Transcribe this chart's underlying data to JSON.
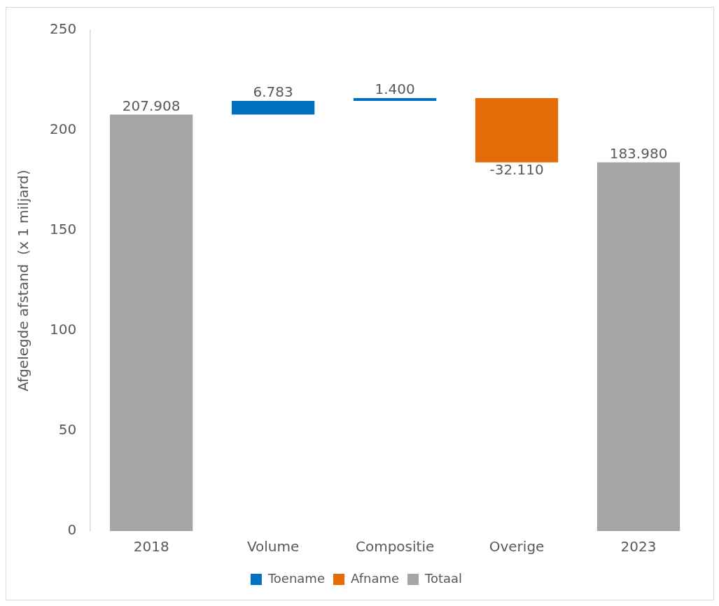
{
  "chart_data": {
    "type": "bar",
    "categories": [
      "2018",
      "Volume",
      "Compositie",
      "Overige",
      "2023"
    ],
    "ylabel": "Afgelegde afstand  (x 1 miljard)",
    "ylim": [
      0,
      250
    ],
    "yticks": [
      0,
      50,
      100,
      150,
      200,
      250
    ],
    "grid": false,
    "legend": "bottom",
    "series": [
      {
        "name": "Toename",
        "color": "#0070c0",
        "values": [
          null,
          6.783,
          1.4,
          null,
          null
        ],
        "base": [
          null,
          207.908,
          214.691,
          null,
          null
        ],
        "value_labels": [
          null,
          "6.783",
          "1.400",
          null,
          null
        ]
      },
      {
        "name": "Afname",
        "color": "#e36c09",
        "values": [
          null,
          null,
          null,
          -32.11,
          null
        ],
        "base": [
          null,
          null,
          null,
          216.091,
          null
        ],
        "value_labels": [
          null,
          null,
          null,
          "-32.110",
          null
        ]
      },
      {
        "name": "Totaal",
        "color": "#a5a5a5",
        "values": [
          207.908,
          null,
          null,
          null,
          183.98
        ],
        "base": [
          0,
          null,
          null,
          null,
          0
        ],
        "value_labels": [
          "207.908",
          null,
          null,
          null,
          "183.980"
        ]
      }
    ]
  }
}
